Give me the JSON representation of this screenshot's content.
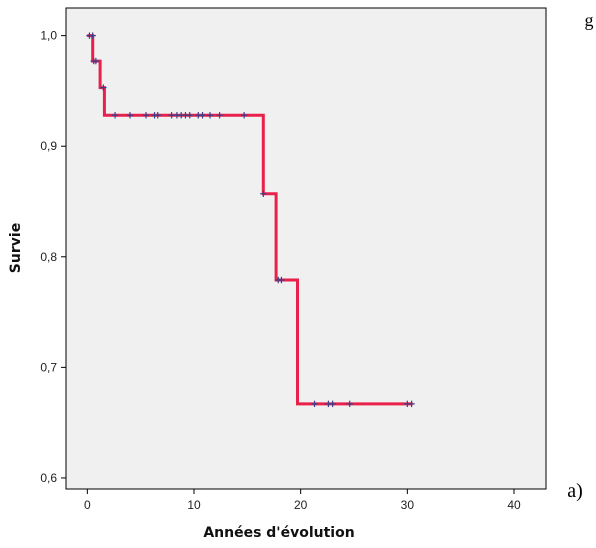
{
  "chart_data": {
    "type": "line",
    "title": "",
    "xlabel": "Années d'évolution",
    "ylabel": "Survie",
    "xlim": [
      -2,
      43
    ],
    "ylim": [
      0.59,
      1.025
    ],
    "x_ticks": [
      0,
      10,
      20,
      30,
      40
    ],
    "y_ticks": [
      0.6,
      0.7,
      0.8,
      0.9,
      1.0
    ],
    "x_tick_labels": [
      "0",
      "10",
      "20",
      "30",
      "40"
    ],
    "y_tick_labels": [
      "0,6",
      "0,7",
      "0,8",
      "0,9",
      "1,0"
    ],
    "grid": false,
    "legend": "none",
    "line_color": "#e8204a",
    "censor_color": "#3d3f8c",
    "background_color": "#f0f0f0",
    "series": [
      {
        "step_points": [
          [
            0,
            1.0
          ],
          [
            0.5,
            1.0
          ],
          [
            0.5,
            0.977
          ],
          [
            1.2,
            0.977
          ],
          [
            1.2,
            0.953
          ],
          [
            1.6,
            0.953
          ],
          [
            1.6,
            0.928
          ],
          [
            16.5,
            0.928
          ],
          [
            16.5,
            0.857
          ],
          [
            17.7,
            0.857
          ],
          [
            17.7,
            0.779
          ],
          [
            19.7,
            0.779
          ],
          [
            19.7,
            0.667
          ],
          [
            30.5,
            0.667
          ]
        ],
        "censored": [
          [
            0.2,
            1.0
          ],
          [
            0.5,
            1.0
          ],
          [
            0.6,
            0.977
          ],
          [
            0.8,
            0.977
          ],
          [
            1.5,
            0.953
          ],
          [
            2.6,
            0.928
          ],
          [
            4.0,
            0.928
          ],
          [
            5.5,
            0.928
          ],
          [
            6.3,
            0.928
          ],
          [
            6.6,
            0.928
          ],
          [
            7.9,
            0.928
          ],
          [
            8.4,
            0.928
          ],
          [
            8.8,
            0.928
          ],
          [
            9.2,
            0.928
          ],
          [
            9.6,
            0.928
          ],
          [
            10.4,
            0.928
          ],
          [
            10.8,
            0.928
          ],
          [
            11.5,
            0.928
          ],
          [
            12.4,
            0.928
          ],
          [
            14.7,
            0.928
          ],
          [
            16.5,
            0.857
          ],
          [
            17.9,
            0.779
          ],
          [
            18.2,
            0.779
          ],
          [
            21.3,
            0.667
          ],
          [
            22.6,
            0.667
          ],
          [
            23.0,
            0.667
          ],
          [
            24.6,
            0.667
          ],
          [
            30.0,
            0.667
          ],
          [
            30.4,
            0.667
          ]
        ]
      }
    ]
  },
  "annotations": {
    "panel_label": "a)",
    "corner_fragment": "g"
  }
}
